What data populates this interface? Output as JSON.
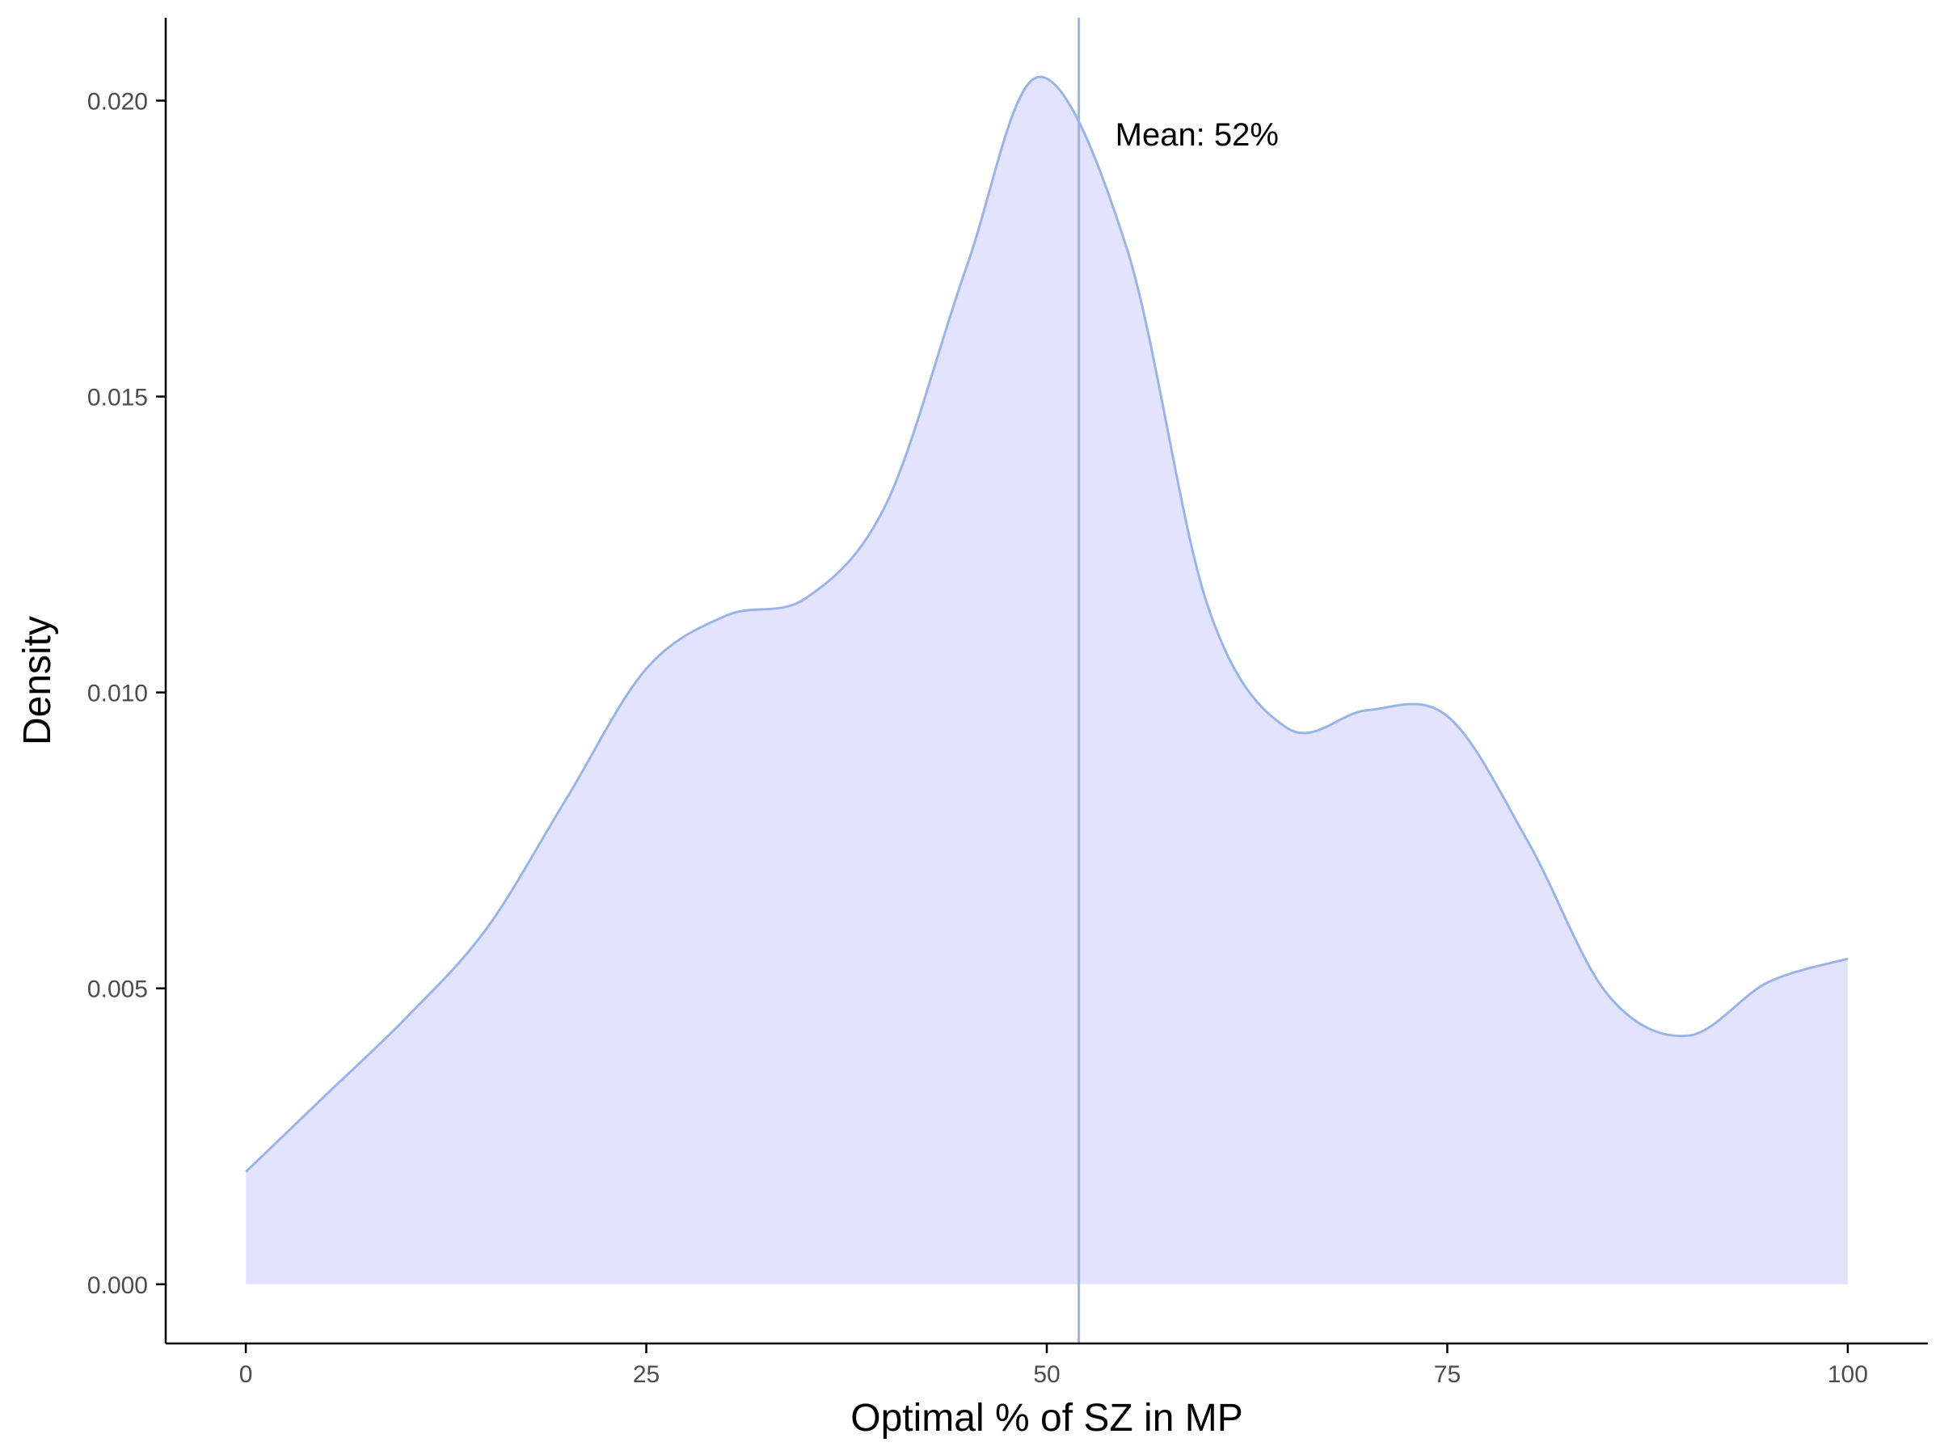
{
  "chart_data": {
    "type": "area",
    "title": "",
    "xlabel": "Optimal % of SZ in MP",
    "ylabel": "Density",
    "xlim": [
      -5,
      105
    ],
    "ylim": [
      -0.001,
      0.0214
    ],
    "x_ticks": [
      0,
      25,
      50,
      75,
      100
    ],
    "x_tick_labels": [
      "0",
      "25",
      "50",
      "75",
      "100"
    ],
    "y_ticks": [
      0,
      0.005,
      0.01,
      0.015,
      0.02
    ],
    "y_tick_labels": [
      "0.000",
      "0.005",
      "0.010",
      "0.015",
      "0.020"
    ],
    "grid": false,
    "legend": "none",
    "series": [
      {
        "x": [
          0,
          5,
          10,
          15,
          20,
          25,
          30,
          35,
          40,
          45,
          49.5,
          55,
          60,
          65,
          70,
          75,
          80,
          85,
          90,
          95,
          100
        ],
        "y": [
          0.0019,
          0.0032,
          0.0045,
          0.006,
          0.0082,
          0.0104,
          0.0113,
          0.0116,
          0.0132,
          0.0172,
          0.0204,
          0.0175,
          0.0115,
          0.0094,
          0.0097,
          0.0096,
          0.0075,
          0.0049,
          0.0042,
          0.0051,
          0.0055
        ]
      }
    ],
    "mean_line": {
      "x": 52,
      "label": "Mean: 52%"
    },
    "colors": {
      "fill": "#e3e3fd",
      "line": "#9ab4e8",
      "axis": "#000000",
      "tick_text": "#4d4d4d"
    }
  }
}
